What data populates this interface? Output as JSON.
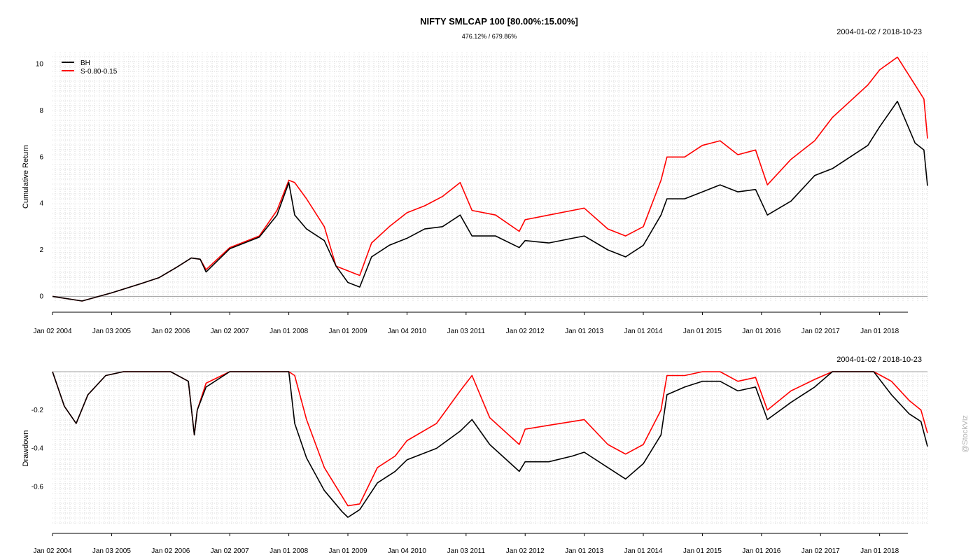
{
  "header": {
    "title": "NIFTY SMLCAP 100 [80.00%:15.00%]",
    "subtitle": "476.12% / 679.86%",
    "date_range_top": "2004-01-02 / 2018-10-23",
    "date_range_bottom": "2004-01-02 / 2018-10-23"
  },
  "watermark": "@StockViz",
  "colors": {
    "bh": "#000000",
    "strategy": "#ff0000",
    "grid": "#d0d0d0",
    "zero_line": "#a0a0a0"
  },
  "chart_data": [
    {
      "type": "line",
      "ylabel": "Cumulative Return",
      "xlabel": "",
      "ylim": [
        -0.2,
        10.5
      ],
      "yticks": [
        0,
        2,
        4,
        6,
        8,
        10
      ],
      "grid": true,
      "legend_position": "top-left",
      "x_tick_labels": [
        "Jan 02 2004",
        "Jan 03 2005",
        "Jan 02 2006",
        "Jan 02 2007",
        "Jan 01 2008",
        "Jan 01 2009",
        "Jan 04 2010",
        "Jan 03 2011",
        "Jan 02 2012",
        "Jan 01 2013",
        "Jan 01 2014",
        "Jan 01 2015",
        "Jan 01 2016",
        "Jan 02 2017",
        "Jan 01 2018"
      ],
      "x": [
        2004.0,
        2004.5,
        2005.0,
        2005.5,
        2005.8,
        2006.1,
        2006.35,
        2006.5,
        2006.6,
        2007.0,
        2007.5,
        2007.8,
        2008.0,
        2008.1,
        2008.3,
        2008.6,
        2008.8,
        2009.0,
        2009.2,
        2009.4,
        2009.7,
        2010.0,
        2010.3,
        2010.6,
        2010.9,
        2011.1,
        2011.5,
        2011.9,
        2012.0,
        2012.4,
        2012.8,
        2013.0,
        2013.4,
        2013.7,
        2014.0,
        2014.3,
        2014.4,
        2014.7,
        2015.0,
        2015.3,
        2015.6,
        2015.9,
        2016.1,
        2016.5,
        2016.9,
        2017.2,
        2017.5,
        2017.8,
        2018.0,
        2018.3,
        2018.6,
        2018.75,
        2018.81
      ],
      "series": [
        {
          "name": "BH",
          "values": [
            0,
            -0.2,
            0.15,
            0.55,
            0.8,
            1.25,
            1.65,
            1.6,
            1.05,
            2.05,
            2.55,
            3.5,
            4.9,
            3.5,
            2.9,
            2.4,
            1.3,
            0.6,
            0.4,
            1.7,
            2.2,
            2.5,
            2.9,
            3.0,
            3.5,
            2.6,
            2.6,
            2.1,
            2.4,
            2.3,
            2.5,
            2.6,
            2.0,
            1.7,
            2.2,
            3.5,
            4.2,
            4.2,
            4.5,
            4.8,
            4.5,
            4.6,
            3.5,
            4.1,
            5.2,
            5.5,
            6.0,
            6.5,
            7.3,
            8.4,
            6.6,
            6.3,
            4.76
          ]
        },
        {
          "name": "S-0.80-0.15",
          "values": [
            0,
            -0.2,
            0.15,
            0.55,
            0.8,
            1.25,
            1.65,
            1.6,
            1.15,
            2.1,
            2.6,
            3.7,
            5.0,
            4.9,
            4.2,
            3.0,
            1.3,
            1.1,
            0.9,
            2.3,
            3.0,
            3.6,
            3.9,
            4.3,
            4.9,
            3.7,
            3.5,
            2.8,
            3.3,
            3.5,
            3.7,
            3.8,
            2.9,
            2.6,
            3.0,
            5.0,
            6.0,
            6.0,
            6.5,
            6.7,
            6.1,
            6.3,
            4.8,
            5.9,
            6.7,
            7.7,
            8.4,
            9.1,
            9.75,
            10.3,
            9.1,
            8.5,
            6.8
          ]
        }
      ]
    },
    {
      "type": "line",
      "ylabel": "Drawdown",
      "xlabel": "",
      "ylim": [
        -0.8,
        0.0
      ],
      "yticks": [
        -0.2,
        -0.4,
        -0.6
      ],
      "grid": true,
      "x_tick_labels": [
        "Jan 02 2004",
        "Jan 03 2005",
        "Jan 02 2006",
        "Jan 02 2007",
        "Jan 01 2008",
        "Jan 01 2009",
        "Jan 04 2010",
        "Jan 03 2011",
        "Jan 02 2012",
        "Jan 01 2013",
        "Jan 01 2014",
        "Jan 01 2015",
        "Jan 01 2016",
        "Jan 02 2017",
        "Jan 01 2018"
      ],
      "x": [
        2004.0,
        2004.2,
        2004.4,
        2004.6,
        2004.9,
        2005.2,
        2005.6,
        2006.0,
        2006.3,
        2006.4,
        2006.45,
        2006.6,
        2007.0,
        2007.5,
        2008.0,
        2008.1,
        2008.3,
        2008.6,
        2008.9,
        2009.0,
        2009.2,
        2009.5,
        2009.8,
        2010.0,
        2010.5,
        2010.9,
        2011.1,
        2011.4,
        2011.9,
        2012.0,
        2012.4,
        2012.8,
        2013.0,
        2013.4,
        2013.7,
        2014.0,
        2014.3,
        2014.4,
        2014.7,
        2015.0,
        2015.3,
        2015.6,
        2015.9,
        2016.1,
        2016.5,
        2016.9,
        2017.2,
        2017.5,
        2017.9,
        2018.2,
        2018.5,
        2018.7,
        2018.81
      ],
      "series": [
        {
          "name": "BH",
          "values": [
            0,
            -0.18,
            -0.27,
            -0.12,
            -0.02,
            0,
            0,
            0,
            -0.05,
            -0.33,
            -0.2,
            -0.08,
            0,
            0,
            0,
            -0.27,
            -0.45,
            -0.62,
            -0.73,
            -0.76,
            -0.72,
            -0.58,
            -0.52,
            -0.46,
            -0.4,
            -0.31,
            -0.25,
            -0.38,
            -0.52,
            -0.47,
            -0.47,
            -0.44,
            -0.42,
            -0.5,
            -0.56,
            -0.48,
            -0.33,
            -0.12,
            -0.08,
            -0.05,
            -0.05,
            -0.1,
            -0.08,
            -0.25,
            -0.16,
            -0.08,
            0,
            0,
            0,
            -0.12,
            -0.22,
            -0.26,
            -0.39
          ]
        },
        {
          "name": "S-0.80-0.15",
          "values": [
            0,
            -0.18,
            -0.27,
            -0.12,
            -0.02,
            0,
            0,
            0,
            -0.05,
            -0.33,
            -0.2,
            -0.06,
            0,
            0,
            0,
            -0.02,
            -0.25,
            -0.5,
            -0.65,
            -0.7,
            -0.69,
            -0.5,
            -0.44,
            -0.36,
            -0.27,
            -0.1,
            -0.02,
            -0.24,
            -0.38,
            -0.3,
            -0.28,
            -0.26,
            -0.25,
            -0.38,
            -0.43,
            -0.38,
            -0.2,
            -0.02,
            -0.02,
            0,
            0,
            -0.05,
            -0.03,
            -0.2,
            -0.1,
            -0.04,
            0,
            0,
            0,
            -0.05,
            -0.15,
            -0.2,
            -0.32
          ]
        }
      ]
    }
  ]
}
